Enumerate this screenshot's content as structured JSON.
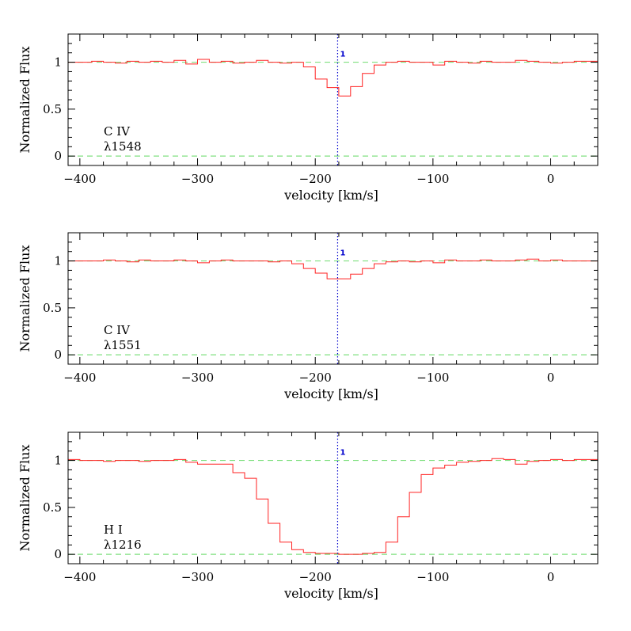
{
  "chart_data": [
    {
      "type": "line",
      "ion": "C IV",
      "line": "λ1548",
      "xlabel": "velocity [km/s]",
      "ylabel": "Normalized Flux",
      "xlim": [
        -410,
        40
      ],
      "ylim": [
        -0.1,
        1.3
      ],
      "xticks": [
        -400,
        -300,
        -200,
        -100,
        0
      ],
      "xtick_labels": [
        "−400",
        "−300",
        "−200",
        "−100",
        "0"
      ],
      "yticks": [
        0,
        0.5,
        1
      ],
      "ytick_labels": [
        "0",
        "0.5",
        "1"
      ],
      "reference_levels": [
        0,
        1
      ],
      "component": {
        "label": "1",
        "velocity": -181
      },
      "x": [
        -410,
        -400,
        -390,
        -380,
        -370,
        -360,
        -350,
        -340,
        -330,
        -320,
        -310,
        -300,
        -290,
        -280,
        -270,
        -260,
        -250,
        -240,
        -230,
        -220,
        -210,
        -200,
        -190,
        -180,
        -170,
        -160,
        -150,
        -140,
        -130,
        -120,
        -110,
        -100,
        -90,
        -80,
        -70,
        -60,
        -50,
        -40,
        -30,
        -20,
        -10,
        0,
        10,
        20,
        30
      ],
      "flux": [
        1.0,
        1.0,
        1.01,
        1.0,
        0.99,
        1.01,
        1.0,
        1.01,
        1.0,
        1.02,
        0.98,
        1.03,
        1.0,
        1.01,
        0.99,
        1.0,
        1.02,
        1.0,
        0.99,
        1.0,
        0.95,
        0.82,
        0.73,
        0.64,
        0.74,
        0.88,
        0.97,
        1.0,
        1.01,
        1.0,
        1.0,
        0.97,
        1.01,
        1.0,
        0.99,
        1.01,
        1.0,
        1.0,
        1.02,
        1.01,
        1.0,
        0.99,
        1.0,
        1.01,
        1.01
      ]
    },
    {
      "type": "line",
      "ion": "C IV",
      "line": "λ1551",
      "xlabel": "velocity [km/s]",
      "ylabel": "Normalized Flux",
      "xlim": [
        -410,
        40
      ],
      "ylim": [
        -0.1,
        1.3
      ],
      "xticks": [
        -400,
        -300,
        -200,
        -100,
        0
      ],
      "xtick_labels": [
        "−400",
        "−300",
        "−200",
        "−100",
        "0"
      ],
      "yticks": [
        0,
        0.5,
        1
      ],
      "ytick_labels": [
        "0",
        "0.5",
        "1"
      ],
      "reference_levels": [
        0,
        1
      ],
      "component": {
        "label": "1",
        "velocity": -181
      },
      "x": [
        -410,
        -400,
        -390,
        -380,
        -370,
        -360,
        -350,
        -340,
        -330,
        -320,
        -310,
        -300,
        -290,
        -280,
        -270,
        -260,
        -250,
        -240,
        -230,
        -220,
        -210,
        -200,
        -190,
        -180,
        -170,
        -160,
        -150,
        -140,
        -130,
        -120,
        -110,
        -100,
        -90,
        -80,
        -70,
        -60,
        -50,
        -40,
        -30,
        -20,
        -10,
        0,
        10,
        20,
        30
      ],
      "flux": [
        1.0,
        1.0,
        1.0,
        1.01,
        1.0,
        0.99,
        1.01,
        1.0,
        1.0,
        1.01,
        1.0,
        0.98,
        1.0,
        1.01,
        1.0,
        1.0,
        1.0,
        0.99,
        1.0,
        0.97,
        0.92,
        0.87,
        0.81,
        0.81,
        0.86,
        0.92,
        0.97,
        0.99,
        1.0,
        0.99,
        1.0,
        0.98,
        1.01,
        1.0,
        1.0,
        1.01,
        1.0,
        1.0,
        1.01,
        1.02,
        1.0,
        1.01,
        1.0,
        1.0,
        1.0
      ]
    },
    {
      "type": "line",
      "ion": "H I",
      "line": "λ1216",
      "xlabel": "velocity [km/s]",
      "ylabel": "Normalized Flux",
      "xlim": [
        -410,
        40
      ],
      "ylim": [
        -0.1,
        1.3
      ],
      "xticks": [
        -400,
        -300,
        -200,
        -100,
        0
      ],
      "xtick_labels": [
        "−400",
        "−300",
        "−200",
        "−100",
        "0"
      ],
      "yticks": [
        0,
        0.5,
        1
      ],
      "ytick_labels": [
        "0",
        "0.5",
        "1"
      ],
      "reference_levels": [
        0,
        1
      ],
      "component": {
        "label": "1",
        "velocity": -181
      },
      "x": [
        -410,
        -400,
        -390,
        -380,
        -370,
        -360,
        -350,
        -340,
        -330,
        -320,
        -310,
        -300,
        -290,
        -280,
        -270,
        -260,
        -250,
        -240,
        -230,
        -220,
        -210,
        -200,
        -190,
        -180,
        -170,
        -160,
        -150,
        -140,
        -130,
        -120,
        -110,
        -100,
        -90,
        -80,
        -70,
        -60,
        -50,
        -40,
        -30,
        -20,
        -10,
        0,
        10,
        20,
        30
      ],
      "flux": [
        1.01,
        1.0,
        1.0,
        0.99,
        1.0,
        1.0,
        0.99,
        1.0,
        1.0,
        1.01,
        0.98,
        0.96,
        0.96,
        0.96,
        0.87,
        0.81,
        0.59,
        0.33,
        0.13,
        0.05,
        0.02,
        0.01,
        0.01,
        0.0,
        0.0,
        0.01,
        0.02,
        0.13,
        0.4,
        0.66,
        0.85,
        0.92,
        0.95,
        0.98,
        0.99,
        1.0,
        1.02,
        1.01,
        0.96,
        0.99,
        1.0,
        1.01,
        1.0,
        1.01,
        1.01
      ]
    }
  ]
}
